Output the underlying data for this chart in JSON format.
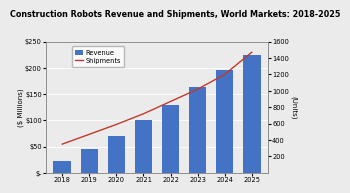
{
  "title": "Construction Robots Revenue and Shipments, World Markets: 2018-2025",
  "years": [
    2018,
    2019,
    2020,
    2021,
    2022,
    2023,
    2024,
    2025
  ],
  "revenue": [
    22,
    45,
    70,
    100,
    130,
    163,
    195,
    225
  ],
  "shipments": [
    350,
    470,
    590,
    720,
    870,
    1020,
    1200,
    1470
  ],
  "bar_color": "#4472C4",
  "line_color": "#C0392B",
  "ylabel_left": "($ Millions)",
  "ylabel_right": "(Units)",
  "ylim_left": [
    0,
    250
  ],
  "ylim_right": [
    0,
    1600
  ],
  "yticks_left": [
    0,
    50,
    100,
    150,
    200,
    250
  ],
  "ytick_labels_left": [
    "$-",
    "$50",
    "$100",
    "$150",
    "$200",
    "$250"
  ],
  "yticks_right": [
    200,
    400,
    600,
    800,
    1000,
    1200,
    1400,
    1600
  ],
  "background_color": "#ebebeb",
  "title_fontsize": 5.8,
  "axis_fontsize": 5.0,
  "tick_fontsize": 4.8,
  "legend_fontsize": 4.8
}
